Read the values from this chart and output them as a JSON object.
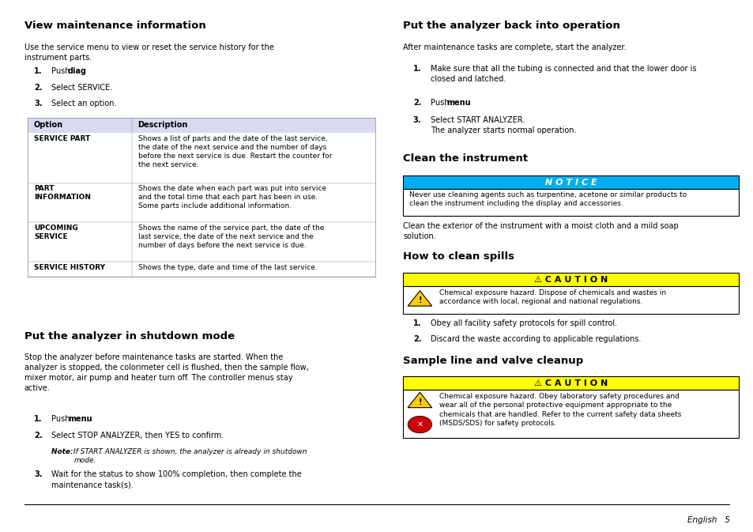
{
  "bg_color": "#ffffff",
  "page_width": 9.54,
  "page_height": 6.73,
  "table_header_color": "#d9d9f0",
  "notice_title_bg": "#00aeef",
  "notice_title_color": "#ffffff",
  "caution_title_bg": "#ffff00",
  "caution_title_color": "#000000",
  "table_line_color": "#888888",
  "footer_text": "English   5"
}
